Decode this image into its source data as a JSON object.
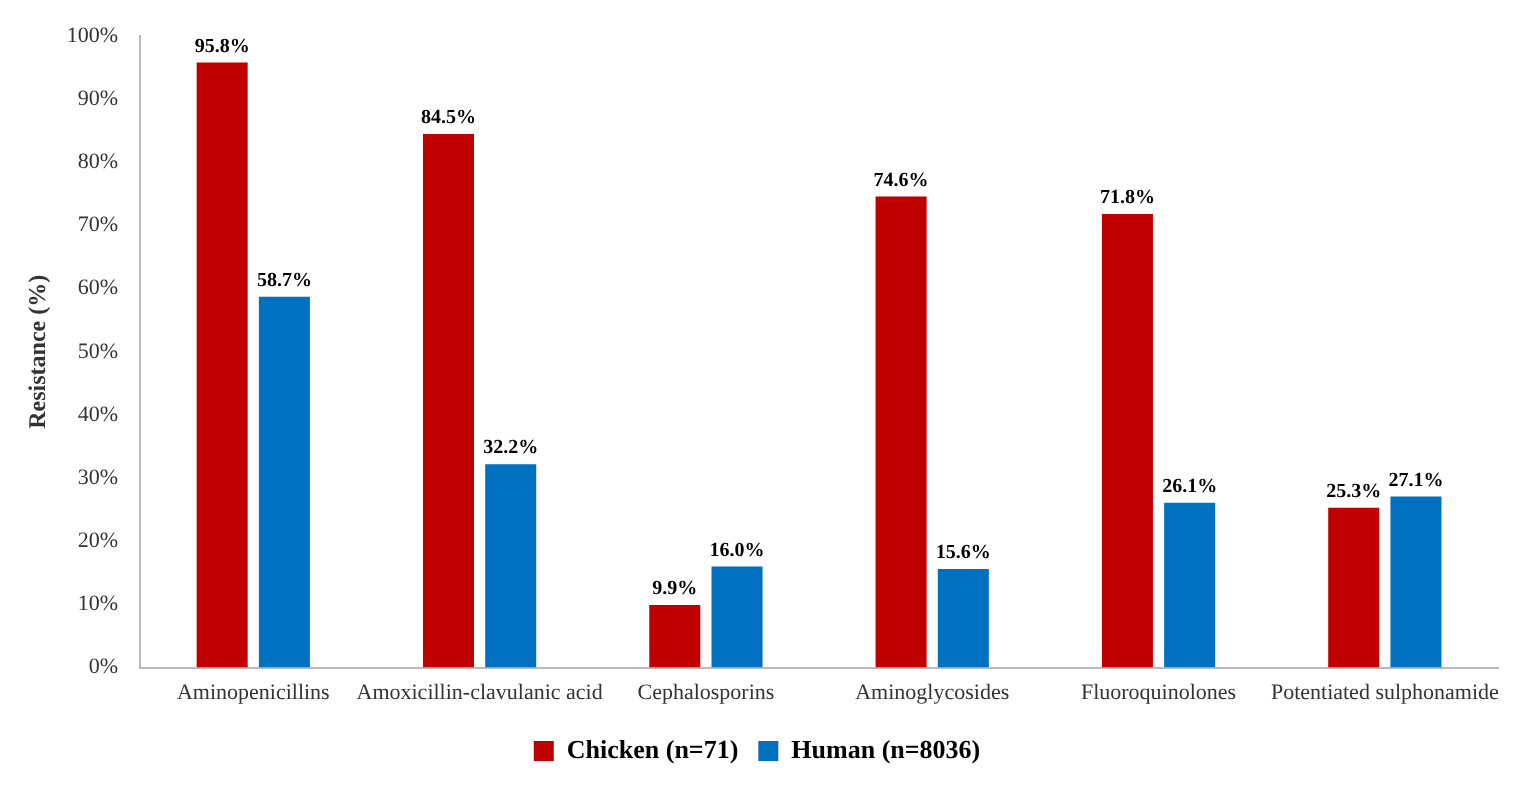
{
  "chart_data": {
    "type": "bar",
    "ylabel": "Resistance (%)",
    "categories": [
      "Aminopenicillins",
      "Amoxicillin-clavulanic acid",
      "Cephalosporins",
      "Aminoglycosides",
      "Fluoroquinolones",
      "Potentiated sulphonamide"
    ],
    "series": [
      {
        "name": "Chicken (n=71)",
        "color": "#c00000",
        "values": [
          95.8,
          84.5,
          9.9,
          74.6,
          71.8,
          25.3
        ],
        "value_labels": [
          "95.8%",
          "84.5%",
          "9.9%",
          "74.6%",
          "71.8%",
          "25.3%"
        ]
      },
      {
        "name": "Human (n=8036)",
        "color": "#0070c0",
        "values": [
          58.7,
          32.2,
          16.0,
          15.6,
          26.1,
          27.1
        ],
        "value_labels": [
          "58.7%",
          "32.2%",
          "16.0%",
          "15.6%",
          "26.1%",
          "27.1%"
        ]
      }
    ],
    "ylim": [
      0,
      100
    ],
    "yticks": [
      {
        "value": 0,
        "label": "0%"
      },
      {
        "value": 10,
        "label": "10%"
      },
      {
        "value": 20,
        "label": "20%"
      },
      {
        "value": 30,
        "label": "30%"
      },
      {
        "value": 40,
        "label": "40%"
      },
      {
        "value": 50,
        "label": "50%"
      },
      {
        "value": 60,
        "label": "60%"
      },
      {
        "value": 70,
        "label": "70%"
      },
      {
        "value": 80,
        "label": "80%"
      },
      {
        "value": 90,
        "label": "90%"
      },
      {
        "value": 100,
        "label": "100%"
      }
    ],
    "grid": false,
    "legend": "bottom"
  }
}
